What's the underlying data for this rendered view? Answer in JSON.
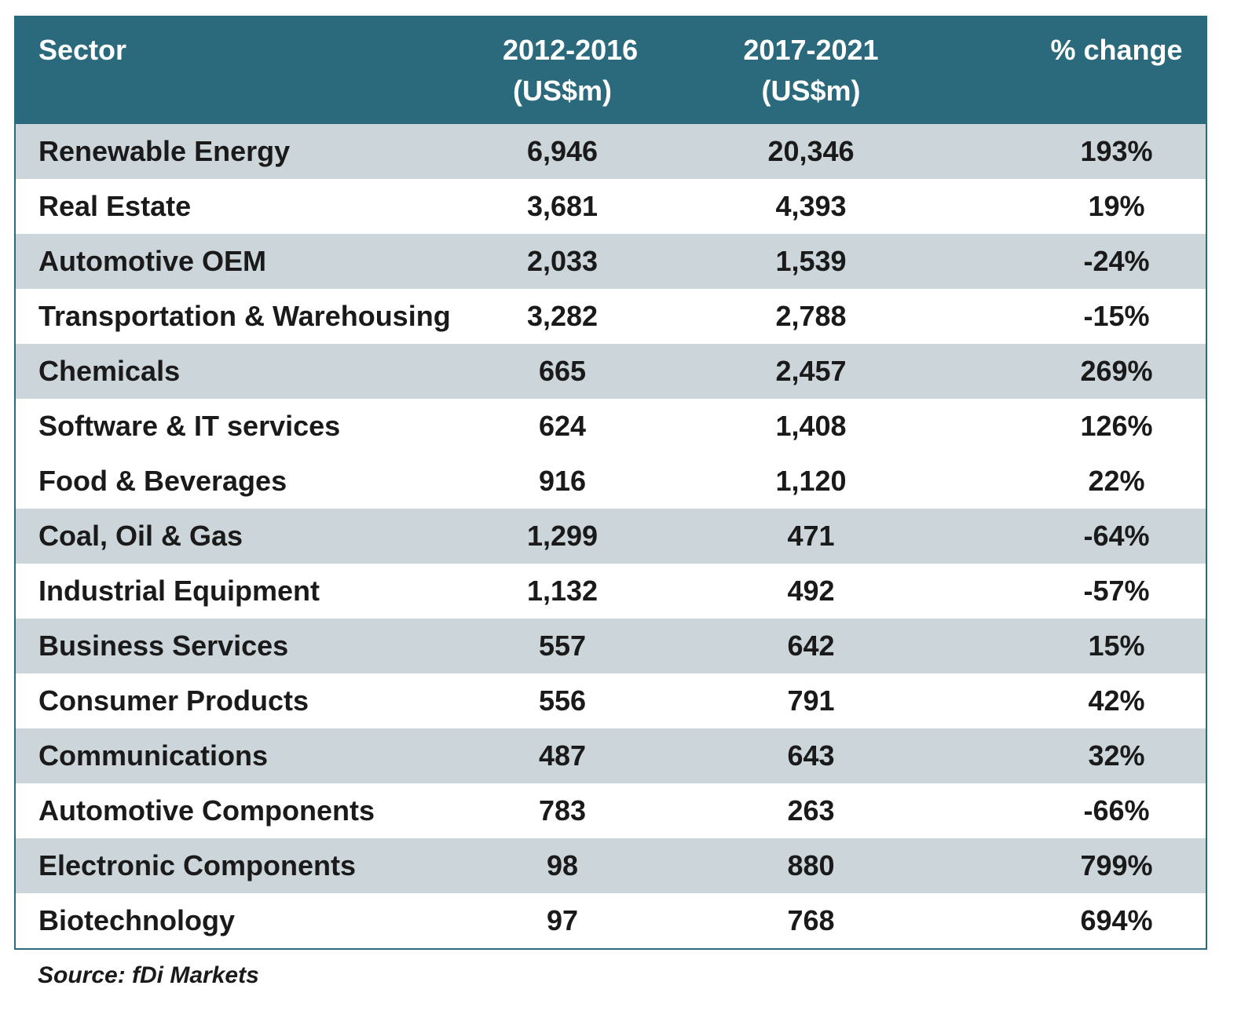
{
  "chart_data": {
    "type": "table",
    "columns": [
      "Sector",
      "2012-2016 (US$m)",
      "2017-2021 (US$m)",
      "% change"
    ],
    "header_lines": [
      [
        "Sector"
      ],
      [
        "2012-2016",
        "(US$m)"
      ],
      [
        "2017-2021",
        "(US$m)"
      ],
      [
        "% change"
      ]
    ],
    "rows": [
      [
        "Renewable Energy",
        "6,946",
        "20,346",
        "193%"
      ],
      [
        "Real Estate",
        "3,681",
        "4,393",
        "19%"
      ],
      [
        "Automotive OEM",
        "2,033",
        "1,539",
        "-24%"
      ],
      [
        "Transportation & Warehousing",
        "3,282",
        "2,788",
        "-15%"
      ],
      [
        "Chemicals",
        "665",
        "2,457",
        "269%"
      ],
      [
        "Software & IT services",
        "624",
        "1,408",
        "126%"
      ],
      [
        "Food & Beverages",
        "916",
        "1,120",
        "22%"
      ],
      [
        "Coal, Oil & Gas",
        "1,299",
        "471",
        "-64%"
      ],
      [
        "Industrial Equipment",
        "1,132",
        "492",
        "-57%"
      ],
      [
        "Business Services",
        "557",
        "642",
        "15%"
      ],
      [
        "Consumer Products",
        "556",
        "791",
        "42%"
      ],
      [
        "Communications",
        "487",
        "643",
        "32%"
      ],
      [
        "Automotive Components",
        "783",
        "263",
        "-66%"
      ],
      [
        "Electronic Components",
        "98",
        "880",
        "799%"
      ],
      [
        "Biotechnology",
        "97",
        "768",
        "694%"
      ]
    ],
    "row_shading": [
      true,
      false,
      true,
      false,
      true,
      false,
      false,
      true,
      false,
      true,
      false,
      true,
      false,
      true,
      false
    ],
    "source": "Source: fDi Markets"
  },
  "colors": {
    "header_background": "#2a6a7c",
    "header_text": "#ffffff",
    "shaded_row": "#ccd5d9",
    "plain_row": "#ffffff",
    "border": "#2a6a7c",
    "body_text": "#1a1a1a"
  }
}
